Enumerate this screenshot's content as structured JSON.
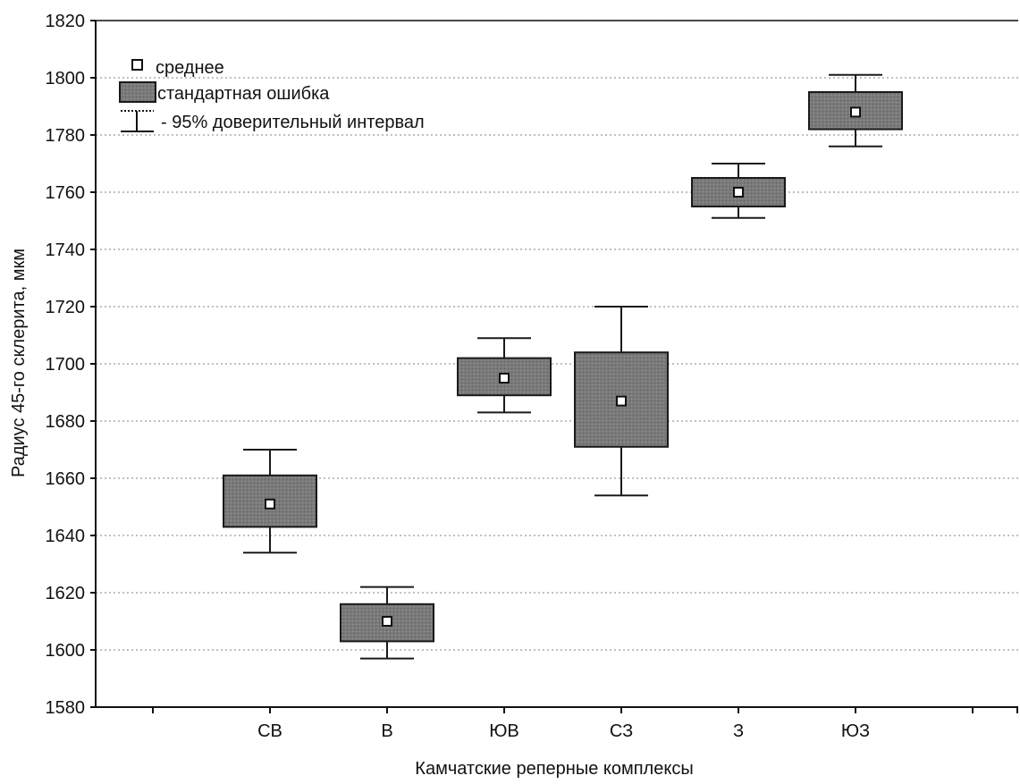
{
  "chart_data": {
    "type": "box",
    "xlabel": "Камчатские реперные комплексы",
    "ylabel": "Радиус 45-го склерита, мкм",
    "ylim": [
      1580,
      1820
    ],
    "yticks": [
      1580,
      1600,
      1620,
      1640,
      1660,
      1680,
      1700,
      1720,
      1740,
      1760,
      1780,
      1800,
      1820
    ],
    "grid": true,
    "legend_position": "top-left",
    "legend": {
      "mean": "среднее",
      "se": "стандартная ошибка",
      "ci": "-  95% доверительный интервал"
    },
    "categories": [
      "СВ",
      "В",
      "ЮВ",
      "СЗ",
      "З",
      "ЮЗ"
    ],
    "series": [
      {
        "category": "СВ",
        "mean": 1651,
        "se_low": 1643,
        "se_high": 1661,
        "ci_low": 1634,
        "ci_high": 1670
      },
      {
        "category": "В",
        "mean": 1610,
        "se_low": 1603,
        "se_high": 1616,
        "ci_low": 1597,
        "ci_high": 1622
      },
      {
        "category": "ЮВ",
        "mean": 1695,
        "se_low": 1689,
        "se_high": 1702,
        "ci_low": 1683,
        "ci_high": 1709
      },
      {
        "category": "СЗ",
        "mean": 1687,
        "se_low": 1671,
        "se_high": 1704,
        "ci_low": 1654,
        "ci_high": 1720
      },
      {
        "category": "З",
        "mean": 1760,
        "se_low": 1755,
        "se_high": 1765,
        "ci_low": 1751,
        "ci_high": 1770
      },
      {
        "category": "ЮЗ",
        "mean": 1788,
        "se_low": 1782,
        "se_high": 1795,
        "ci_low": 1776,
        "ci_high": 1801
      }
    ],
    "colors": {
      "box_fill": "#7a7a7a",
      "box_stroke": "#1a1a1a",
      "grid": "#9a9a9a",
      "axis": "#111111",
      "mean_fill": "#ffffff"
    }
  }
}
